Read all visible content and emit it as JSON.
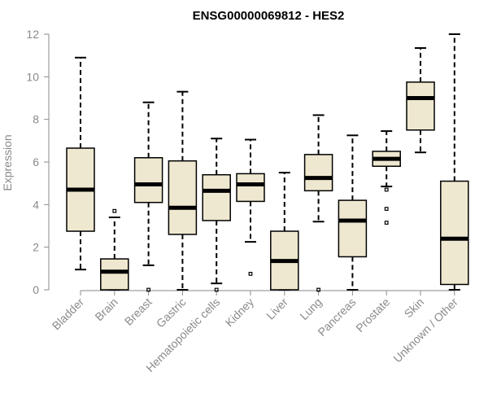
{
  "chart_data": {
    "type": "box",
    "title": "ENSG00000069812 - HES2",
    "xlabel": "",
    "ylabel": "Expression",
    "ylim": [
      0,
      12
    ],
    "yticks": [
      0,
      2,
      4,
      6,
      8,
      10,
      12
    ],
    "grid": false,
    "box_color": "#efe8d0",
    "categories": [
      "Bladder",
      "Brain",
      "Breast",
      "Gastric",
      "Hematopoietic cells",
      "Kidney",
      "Liver",
      "Lung",
      "Pancreas",
      "Prostate",
      "Skin",
      "Unknown / Other"
    ],
    "boxes": [
      {
        "min": 0.95,
        "q1": 2.75,
        "median": 4.7,
        "q3": 6.65,
        "max": 10.9,
        "outliers": []
      },
      {
        "min": 0.0,
        "q1": 0.0,
        "median": 0.85,
        "q3": 1.45,
        "max": 3.4,
        "outliers": [
          3.7
        ]
      },
      {
        "min": 1.15,
        "q1": 4.1,
        "median": 4.95,
        "q3": 6.2,
        "max": 8.8,
        "outliers": [
          0.0
        ]
      },
      {
        "min": 0.0,
        "q1": 2.6,
        "median": 3.85,
        "q3": 6.05,
        "max": 9.3,
        "outliers": []
      },
      {
        "min": 0.3,
        "q1": 3.25,
        "median": 4.65,
        "q3": 5.4,
        "max": 7.1,
        "outliers": [
          0.0
        ]
      },
      {
        "min": 2.25,
        "q1": 4.15,
        "median": 4.95,
        "q3": 5.45,
        "max": 7.05,
        "outliers": [
          0.75
        ]
      },
      {
        "min": 0.0,
        "q1": 0.0,
        "median": 1.35,
        "q3": 2.75,
        "max": 5.5,
        "outliers": []
      },
      {
        "min": 3.2,
        "q1": 4.65,
        "median": 5.25,
        "q3": 6.35,
        "max": 8.2,
        "outliers": [
          0.0
        ]
      },
      {
        "min": 0.0,
        "q1": 1.55,
        "median": 3.25,
        "q3": 4.2,
        "max": 7.25,
        "outliers": []
      },
      {
        "min": 4.85,
        "q1": 5.8,
        "median": 6.15,
        "q3": 6.5,
        "max": 7.45,
        "outliers": [
          4.7,
          3.8,
          3.15
        ]
      },
      {
        "min": 6.45,
        "q1": 7.5,
        "median": 9.0,
        "q3": 9.75,
        "max": 11.35,
        "outliers": []
      },
      {
        "min": 0.0,
        "q1": 0.25,
        "median": 2.4,
        "q3": 5.1,
        "max": 12.0,
        "outliers": []
      }
    ]
  }
}
